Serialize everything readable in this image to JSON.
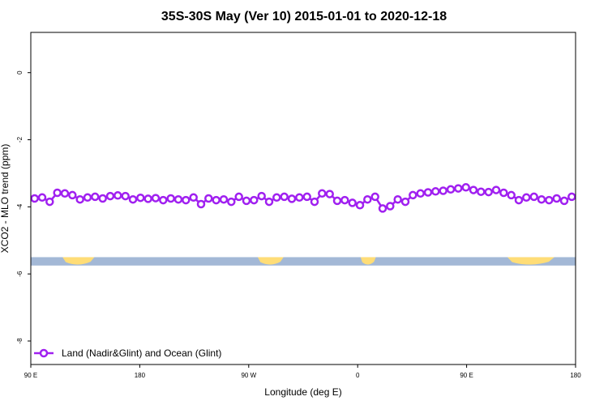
{
  "chart_data": {
    "type": "line",
    "title": "35S-30S May (Ver 10)   2015-01-01 to 2020-12-18",
    "xlabel": "Longitude (deg E)",
    "ylabel": "XCO2 - MLO trend (ppm)",
    "xlim": [
      -90,
      270
    ],
    "ylim": [
      -8.7,
      1.2
    ],
    "x_ticks": [
      {
        "value": -90,
        "label": "90 E"
      },
      {
        "value": -18,
        "label": "180"
      },
      {
        "value": 54,
        "label": "90 W"
      },
      {
        "value": 126,
        "label": "0"
      },
      {
        "value": 198,
        "label": "90 E"
      },
      {
        "value": 270,
        "label": "180"
      }
    ],
    "y_ticks": [
      0,
      -2,
      -4,
      -6,
      -8
    ],
    "series": [
      {
        "name": "Land (Nadir&Glint) and Ocean (Glint)",
        "color": "#a020f0",
        "x": [
          -87.5,
          -82.5,
          -77.5,
          -72.5,
          -67.5,
          -62.5,
          -57.5,
          -52.5,
          -47.5,
          -42.5,
          -37.5,
          -32.5,
          -27.5,
          -22.5,
          -17.5,
          -12.5,
          -7.5,
          -2.5,
          2.5,
          7.5,
          12.5,
          17.5,
          22.5,
          27.5,
          32.5,
          37.5,
          42.5,
          47.5,
          52.5,
          57.5,
          62.5,
          67.5,
          72.5,
          77.5,
          82.5,
          87.5,
          92.5,
          97.5,
          102.5,
          107.5,
          112.5,
          117.5,
          122.5,
          127.5,
          132.5,
          137.5,
          142.5,
          147.5,
          152.5,
          157.5,
          162.5,
          167.5,
          172.5,
          177.5,
          182.5,
          187.5,
          192.5,
          197.5,
          202.5,
          207.5,
          212.5,
          217.5,
          222.5,
          227.5,
          232.5,
          237.5,
          242.5,
          247.5,
          252.5,
          257.5,
          262.5,
          267.5
        ],
        "y": [
          -3.75,
          -3.72,
          -3.85,
          -3.58,
          -3.6,
          -3.65,
          -3.78,
          -3.72,
          -3.7,
          -3.75,
          -3.68,
          -3.66,
          -3.68,
          -3.78,
          -3.73,
          -3.76,
          -3.74,
          -3.8,
          -3.75,
          -3.78,
          -3.8,
          -3.72,
          -3.92,
          -3.75,
          -3.8,
          -3.78,
          -3.85,
          -3.7,
          -3.82,
          -3.8,
          -3.68,
          -3.85,
          -3.72,
          -3.7,
          -3.76,
          -3.72,
          -3.7,
          -3.85,
          -3.6,
          -3.62,
          -3.82,
          -3.8,
          -3.88,
          -3.95,
          -3.78,
          -3.7,
          -4.05,
          -3.98,
          -3.78,
          -3.85,
          -3.65,
          -3.6,
          -3.57,
          -3.54,
          -3.52,
          -3.48,
          -3.45,
          -3.42,
          -3.5,
          -3.55,
          -3.56,
          -3.5,
          -3.58,
          -3.65,
          -3.8,
          -3.72,
          -3.7,
          -3.78,
          -3.8,
          -3.75,
          -3.82,
          -3.7
        ]
      }
    ],
    "legend_position": "bottom-left",
    "grid": false,
    "map_strip": {
      "y_range": [
        -5.75,
        -5.5
      ],
      "ocean_color": "#a3b8d6",
      "land_color": "#ffdd77",
      "land_spans": [
        [
          -69,
          -48
        ],
        [
          60,
          77
        ],
        [
          128,
          138
        ],
        [
          225,
          256
        ]
      ]
    },
    "plot_style": {
      "marker": "hollow-circle",
      "line_width": 2.5
    }
  }
}
